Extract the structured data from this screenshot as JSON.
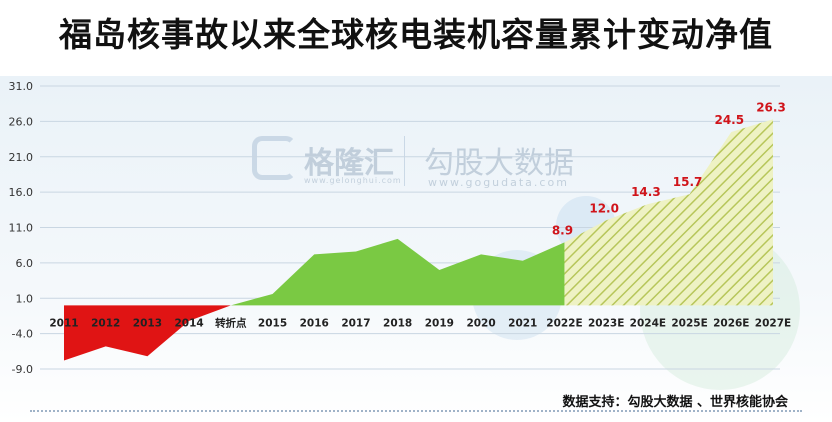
{
  "title": "福岛核事故以来全球核电装机容量累计变动净值",
  "watermark": {
    "brand1": "格隆汇",
    "brand1_sub": "www.gelonghui.com",
    "brand2": "勾股大数据",
    "brand2_sub": "www.gogudata.com"
  },
  "source": "数据支持：勾股大数据 、世界核能协会",
  "colors": {
    "negative_fill": "#e01414",
    "positive_fill": "#7ac943",
    "forecast_fill": "#eef2c4",
    "forecast_hatch": "#b7c65a",
    "label_color": "#d0141a"
  },
  "chart_data": {
    "type": "area",
    "categories": [
      "2011",
      "2012",
      "2013",
      "2014",
      "转折点",
      "2015",
      "2016",
      "2017",
      "2018",
      "2019",
      "2020",
      "2021",
      "2022E",
      "2023E",
      "2024E",
      "2025E",
      "2026E",
      "2027E"
    ],
    "values": [
      -7.8,
      -5.8,
      -7.2,
      -2.2,
      0.0,
      1.6,
      7.2,
      7.6,
      9.4,
      5.0,
      7.2,
      6.3,
      8.9,
      12.0,
      14.3,
      15.7,
      24.5,
      26.3
    ],
    "series": [
      {
        "name": "historical",
        "categories_from": "2011",
        "categories_to": "2022E"
      },
      {
        "name": "forecast",
        "categories_from": "2022E",
        "categories_to": "2027E"
      }
    ],
    "data_labels": [
      {
        "category": "2022E",
        "text": "8.9"
      },
      {
        "category": "2023E",
        "text": "12.0"
      },
      {
        "category": "2024E",
        "text": "14.3"
      },
      {
        "category": "2025E",
        "text": "15.7"
      },
      {
        "category": "2026E",
        "text": "24.5"
      },
      {
        "category": "2027E",
        "text": "26.3"
      }
    ],
    "y_ticks": [
      "31.0",
      "26.0",
      "21.0",
      "16.0",
      "11.0",
      "6.0",
      "1.0",
      "-4.0",
      "-9.0"
    ],
    "ylim": [
      -9,
      31
    ],
    "grid": true,
    "title": "福岛核事故以来全球核电装机容量累计变动净值"
  }
}
